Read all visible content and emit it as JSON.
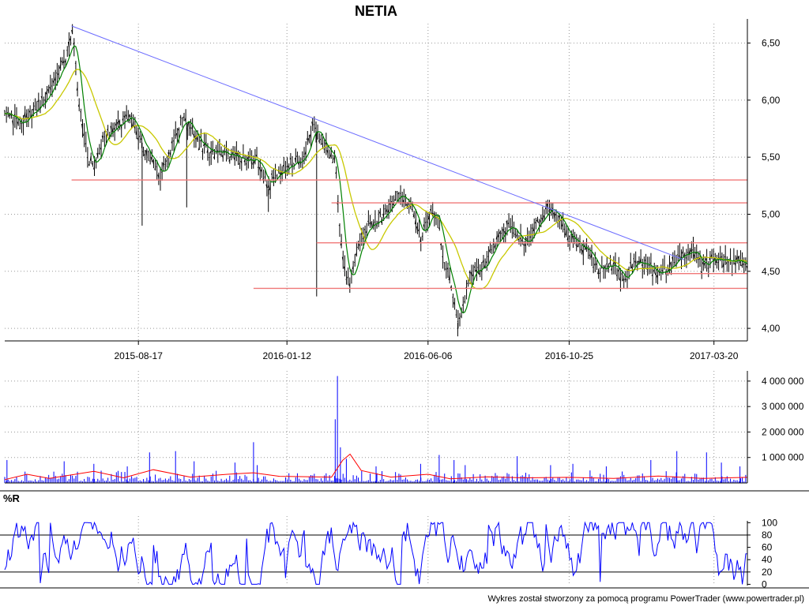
{
  "chart_data": [
    {
      "type": "candlestick",
      "title": "NETIA",
      "y_ticks": [
        "4,00",
        "4,50",
        "5,00",
        "5,50",
        "6,00",
        "6,50"
      ],
      "y_tick_values": [
        4.0,
        4.5,
        5.0,
        5.5,
        6.0,
        6.5
      ],
      "ylim": [
        3.89,
        6.67
      ],
      "x_ticks": [
        "2015-08-17",
        "2016-01-12",
        "2016-06-06",
        "2016-10-25",
        "2017-03-20"
      ],
      "x_tick_positions": [
        0.18,
        0.38,
        0.57,
        0.76,
        0.955
      ],
      "grid": true,
      "price_path": [
        [
          0.0,
          5.92
        ],
        [
          0.02,
          5.78
        ],
        [
          0.05,
          5.98
        ],
        [
          0.07,
          6.18
        ],
        [
          0.085,
          6.42
        ],
        [
          0.092,
          6.62
        ],
        [
          0.1,
          5.95
        ],
        [
          0.11,
          5.55
        ],
        [
          0.12,
          5.38
        ],
        [
          0.13,
          5.62
        ],
        [
          0.15,
          5.78
        ],
        [
          0.17,
          5.86
        ],
        [
          0.19,
          5.55
        ],
        [
          0.21,
          5.35
        ],
        [
          0.22,
          5.52
        ],
        [
          0.24,
          5.86
        ],
        [
          0.26,
          5.62
        ],
        [
          0.28,
          5.55
        ],
        [
          0.3,
          5.52
        ],
        [
          0.32,
          5.48
        ],
        [
          0.34,
          5.48
        ],
        [
          0.355,
          5.22
        ],
        [
          0.36,
          5.32
        ],
        [
          0.38,
          5.42
        ],
        [
          0.4,
          5.48
        ],
        [
          0.415,
          5.77
        ],
        [
          0.43,
          5.6
        ],
        [
          0.445,
          5.45
        ],
        [
          0.455,
          4.58
        ],
        [
          0.465,
          4.4
        ],
        [
          0.475,
          4.72
        ],
        [
          0.49,
          4.9
        ],
        [
          0.51,
          4.98
        ],
        [
          0.53,
          5.18
        ],
        [
          0.55,
          5.02
        ],
        [
          0.56,
          4.78
        ],
        [
          0.575,
          5.05
        ],
        [
          0.585,
          4.95
        ],
        [
          0.59,
          4.6
        ],
        [
          0.6,
          4.42
        ],
        [
          0.61,
          4.05
        ],
        [
          0.62,
          4.25
        ],
        [
          0.625,
          4.45
        ],
        [
          0.64,
          4.52
        ],
        [
          0.65,
          4.62
        ],
        [
          0.665,
          4.8
        ],
        [
          0.68,
          4.92
        ],
        [
          0.7,
          4.72
        ],
        [
          0.715,
          4.88
        ],
        [
          0.73,
          5.06
        ],
        [
          0.745,
          4.95
        ],
        [
          0.76,
          4.82
        ],
        [
          0.78,
          4.7
        ],
        [
          0.8,
          4.52
        ],
        [
          0.82,
          4.55
        ],
        [
          0.835,
          4.42
        ],
        [
          0.85,
          4.6
        ],
        [
          0.87,
          4.55
        ],
        [
          0.88,
          4.45
        ],
        [
          0.895,
          4.55
        ],
        [
          0.91,
          4.62
        ],
        [
          0.925,
          4.7
        ],
        [
          0.94,
          4.52
        ],
        [
          0.955,
          4.62
        ],
        [
          0.97,
          4.6
        ],
        [
          1.0,
          4.58
        ]
      ],
      "support_lines": [
        {
          "x_from": 0.09,
          "x_to": 1.0,
          "y": 5.3
        },
        {
          "x_from": 0.44,
          "x_to": 1.0,
          "y": 5.1
        },
        {
          "x_from": 0.42,
          "x_to": 1.0,
          "y": 4.75
        },
        {
          "x_from": 0.89,
          "x_to": 1.0,
          "y": 4.48
        },
        {
          "x_from": 0.335,
          "x_to": 1.0,
          "y": 4.35
        }
      ],
      "trend_line": {
        "from": [
          0.09,
          6.65
        ],
        "to": [
          0.915,
          4.6
        ]
      },
      "colors": {
        "candles": "#000000",
        "ma_fast": "#008000",
        "ma_slow": "#c8c800",
        "support": "#f07878",
        "trend": "#6b6bff"
      }
    },
    {
      "type": "bar",
      "name": "volume",
      "y_ticks": [
        "1 000 000",
        "2 000 000",
        "3 000 000",
        "4 000 000"
      ],
      "y_tick_values": [
        1000000,
        2000000,
        3000000,
        4000000
      ],
      "ylim": [
        0,
        4400000
      ],
      "spikes": [
        [
          0.003,
          900000
        ],
        [
          0.08,
          850000
        ],
        [
          0.12,
          750000
        ],
        [
          0.165,
          650000
        ],
        [
          0.195,
          1200000
        ],
        [
          0.23,
          1250000
        ],
        [
          0.255,
          850000
        ],
        [
          0.31,
          800000
        ],
        [
          0.335,
          1600000
        ],
        [
          0.34,
          700000
        ],
        [
          0.445,
          2500000
        ],
        [
          0.448,
          4200000
        ],
        [
          0.452,
          1400000
        ],
        [
          0.46,
          950000
        ],
        [
          0.5,
          650000
        ],
        [
          0.56,
          750000
        ],
        [
          0.585,
          1100000
        ],
        [
          0.605,
          900000
        ],
        [
          0.62,
          700000
        ],
        [
          0.69,
          1050000
        ],
        [
          0.735,
          700000
        ],
        [
          0.765,
          750000
        ],
        [
          0.81,
          650000
        ],
        [
          0.87,
          900000
        ],
        [
          0.905,
          1250000
        ],
        [
          0.945,
          1200000
        ],
        [
          0.965,
          800000
        ],
        [
          0.99,
          650000
        ]
      ],
      "avg_path": [
        [
          0.0,
          150000
        ],
        [
          0.03,
          300000
        ],
        [
          0.06,
          200000
        ],
        [
          0.12,
          420000
        ],
        [
          0.16,
          220000
        ],
        [
          0.2,
          480000
        ],
        [
          0.25,
          250000
        ],
        [
          0.3,
          300000
        ],
        [
          0.335,
          420000
        ],
        [
          0.37,
          220000
        ],
        [
          0.44,
          250000
        ],
        [
          0.455,
          850000
        ],
        [
          0.465,
          1150000
        ],
        [
          0.48,
          450000
        ],
        [
          0.52,
          250000
        ],
        [
          0.57,
          300000
        ],
        [
          0.6,
          180000
        ],
        [
          0.65,
          200000
        ],
        [
          0.7,
          220000
        ],
        [
          0.76,
          180000
        ],
        [
          0.82,
          200000
        ],
        [
          0.88,
          230000
        ],
        [
          0.94,
          200000
        ],
        [
          1.0,
          180000
        ]
      ],
      "colors": {
        "bars": "#0000ff",
        "avg": "#ff0000"
      }
    },
    {
      "type": "line",
      "name": "%R",
      "label": "%R",
      "y_ticks": [
        "0",
        "20",
        "40",
        "60",
        "80",
        "100"
      ],
      "y_tick_values": [
        0,
        20,
        40,
        60,
        80,
        100
      ],
      "ylim": [
        -2,
        103
      ],
      "ref_levels": [
        20,
        80
      ],
      "seed": 1234,
      "colors": {
        "line": "#0000ff",
        "ref": "#000000"
      }
    }
  ],
  "footer": "Wykres został stworzony za pomocą programu PowerTrader (www.powertrader.pl)"
}
